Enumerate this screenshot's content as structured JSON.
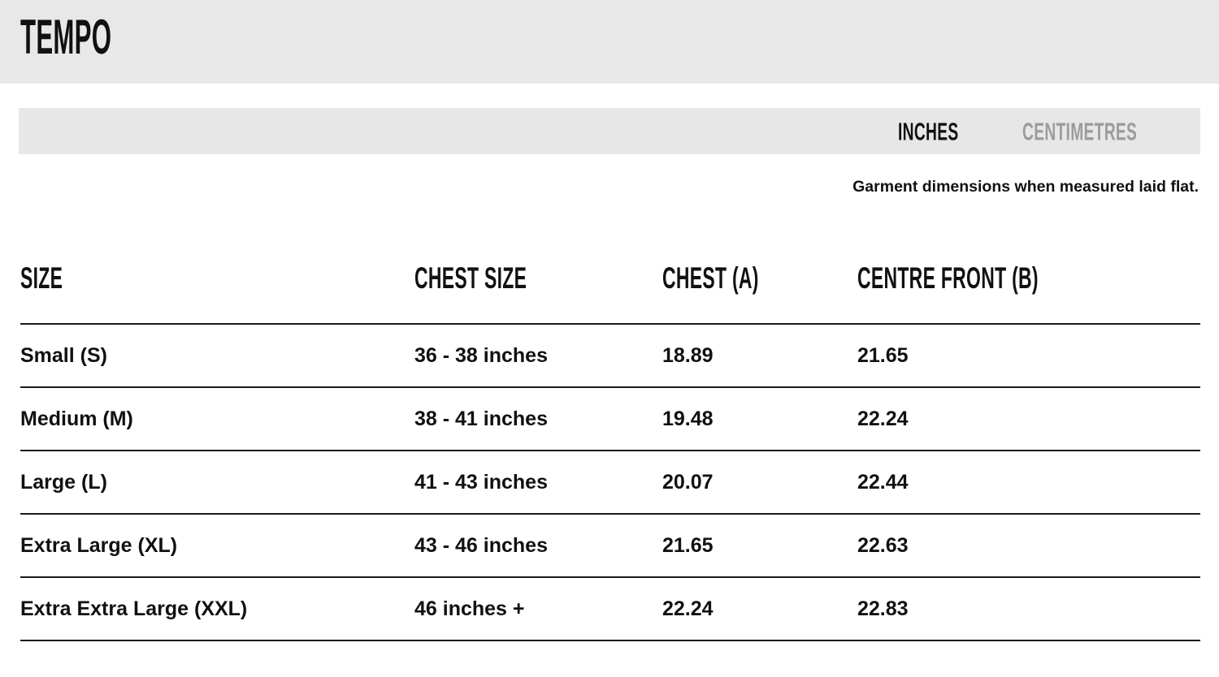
{
  "page": {
    "title": "TEMPO"
  },
  "unit_toggle": {
    "options": [
      {
        "label": "INCHES",
        "active": true
      },
      {
        "label": "CENTIMETRES",
        "active": false
      }
    ]
  },
  "note": "Garment dimensions when measured laid flat.",
  "size_table": {
    "columns": [
      "SIZE",
      "CHEST SIZE",
      "CHEST (A)",
      "CENTRE FRONT (B)"
    ],
    "rows": [
      {
        "size": "Small (S)",
        "chest_size": "36 - 38 inches",
        "chest_a": "18.89",
        "centre_front_b": "21.65"
      },
      {
        "size": "Medium (M)",
        "chest_size": "38 - 41 inches",
        "chest_a": "19.48",
        "centre_front_b": "22.24"
      },
      {
        "size": "Large (L)",
        "chest_size": "41 - 43 inches",
        "chest_a": "20.07",
        "centre_front_b": "22.44"
      },
      {
        "size": "Extra Large (XL)",
        "chest_size": "43 - 46 inches",
        "chest_a": "21.65",
        "centre_front_b": "22.63"
      },
      {
        "size": "Extra Extra Large (XXL)",
        "chest_size": "46 inches +",
        "chest_a": "22.24",
        "centre_front_b": "22.83"
      }
    ]
  },
  "colors": {
    "band_bg": "#e8e8e8",
    "toggle_bg": "#e7e7e7",
    "text": "#111111",
    "inactive_tab": "#9c9c9c",
    "line": "#1a1a1a"
  }
}
